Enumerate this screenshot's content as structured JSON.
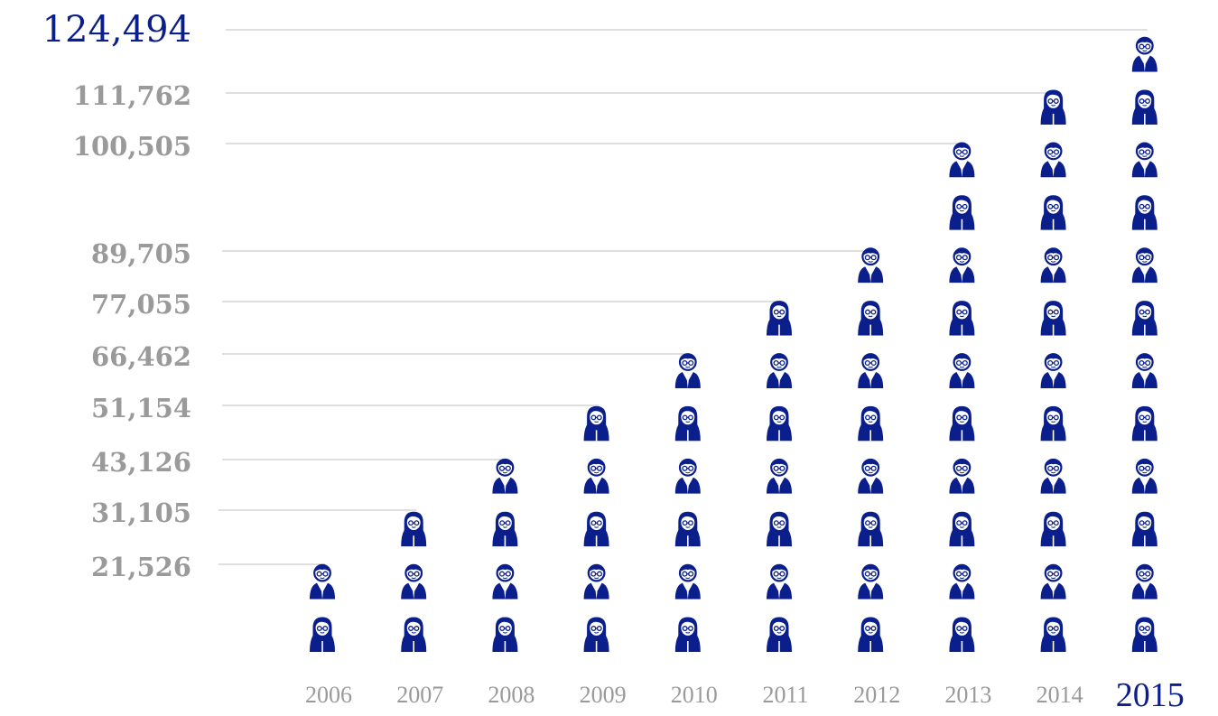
{
  "colors": {
    "accent": "#0a1e8c",
    "label": "#9a9a9a",
    "gridline": "#bfbfbf"
  },
  "icon_names": [
    "person-with-glasses-icon",
    "person-long-hair-icon"
  ],
  "chart_data": {
    "type": "bar",
    "style": "pictogram",
    "categories": [
      "2006",
      "2007",
      "2008",
      "2009",
      "2010",
      "2011",
      "2012",
      "2013",
      "2014",
      "2015"
    ],
    "values": [
      21526,
      31105,
      43126,
      51154,
      66462,
      77055,
      89705,
      100505,
      111762,
      124494
    ],
    "value_labels": [
      "21,526",
      "31,105",
      "43,126",
      "51,154",
      "66,462",
      "77,055",
      "89,705",
      "100,505",
      "111,762",
      "124,494"
    ],
    "icon_counts": [
      2,
      3,
      4,
      5,
      6,
      7,
      8,
      10,
      11,
      12
    ],
    "title": "",
    "xlabel": "",
    "ylabel": "",
    "highlighted_category": "2015",
    "grid": "leader lines from each value label to the top of its column"
  }
}
